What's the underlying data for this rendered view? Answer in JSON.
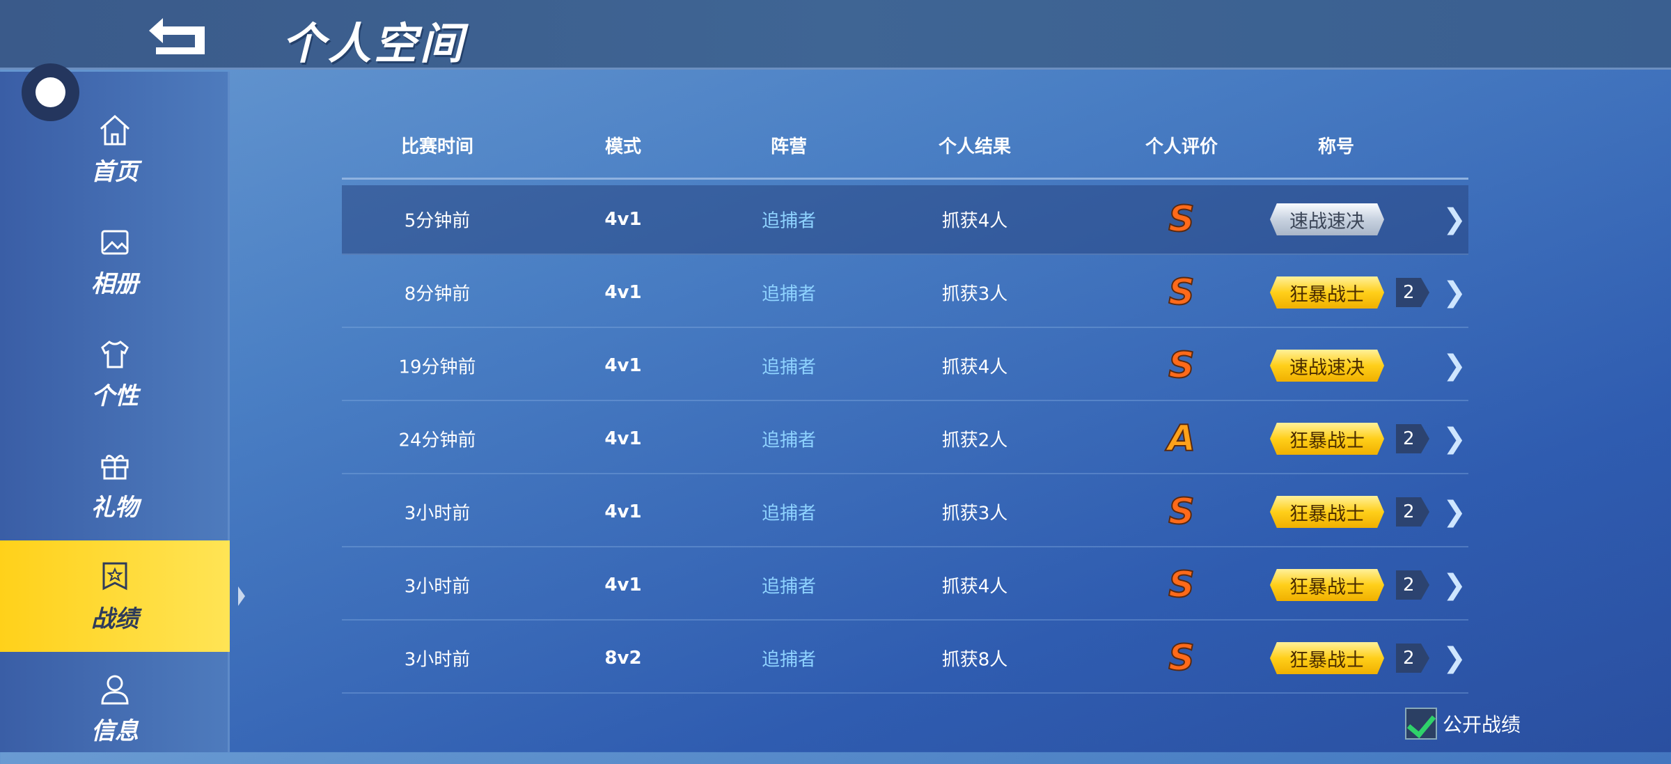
{
  "header": {
    "title": "个人空间",
    "back_icon": "back-arrow-icon"
  },
  "sidebar": {
    "items": [
      {
        "label": "首页",
        "icon": "home-icon"
      },
      {
        "label": "相册",
        "icon": "image-icon"
      },
      {
        "label": "个性",
        "icon": "shirt-icon"
      },
      {
        "label": "礼物",
        "icon": "gift-icon"
      },
      {
        "label": "战绩",
        "icon": "badge-icon",
        "active": true
      },
      {
        "label": "信息",
        "icon": "user-icon"
      }
    ]
  },
  "table": {
    "headers": [
      "比赛时间",
      "模式",
      "阵营",
      "个人结果",
      "个人评价",
      "称号"
    ],
    "rows": [
      {
        "time": "5分钟前",
        "mode": "4v1",
        "camp": "追捕者",
        "result": "抓获4人",
        "grade": "S",
        "title": "速战速决",
        "title_style": "silver",
        "level": ""
      },
      {
        "time": "8分钟前",
        "mode": "4v1",
        "camp": "追捕者",
        "result": "抓获3人",
        "grade": "S",
        "title": "狂暴战士",
        "title_style": "gold",
        "level": "2"
      },
      {
        "time": "19分钟前",
        "mode": "4v1",
        "camp": "追捕者",
        "result": "抓获4人",
        "grade": "S",
        "title": "速战速决",
        "title_style": "gold",
        "level": ""
      },
      {
        "time": "24分钟前",
        "mode": "4v1",
        "camp": "追捕者",
        "result": "抓获2人",
        "grade": "A",
        "title": "狂暴战士",
        "title_style": "gold",
        "level": "2"
      },
      {
        "time": "3小时前",
        "mode": "4v1",
        "camp": "追捕者",
        "result": "抓获3人",
        "grade": "S",
        "title": "狂暴战士",
        "title_style": "gold",
        "level": "2"
      },
      {
        "time": "3小时前",
        "mode": "4v1",
        "camp": "追捕者",
        "result": "抓获4人",
        "grade": "S",
        "title": "狂暴战士",
        "title_style": "gold",
        "level": "2"
      },
      {
        "time": "3小时前",
        "mode": "8v2",
        "camp": "追捕者",
        "result": "抓获8人",
        "grade": "S",
        "title": "狂暴战士",
        "title_style": "gold",
        "level": "2"
      }
    ]
  },
  "footer": {
    "public_label": "公开战绩",
    "public_checked": true
  },
  "colors": {
    "accent": "#ffd11a",
    "camp": "#8fd3ff",
    "check": "#2fd26a"
  }
}
